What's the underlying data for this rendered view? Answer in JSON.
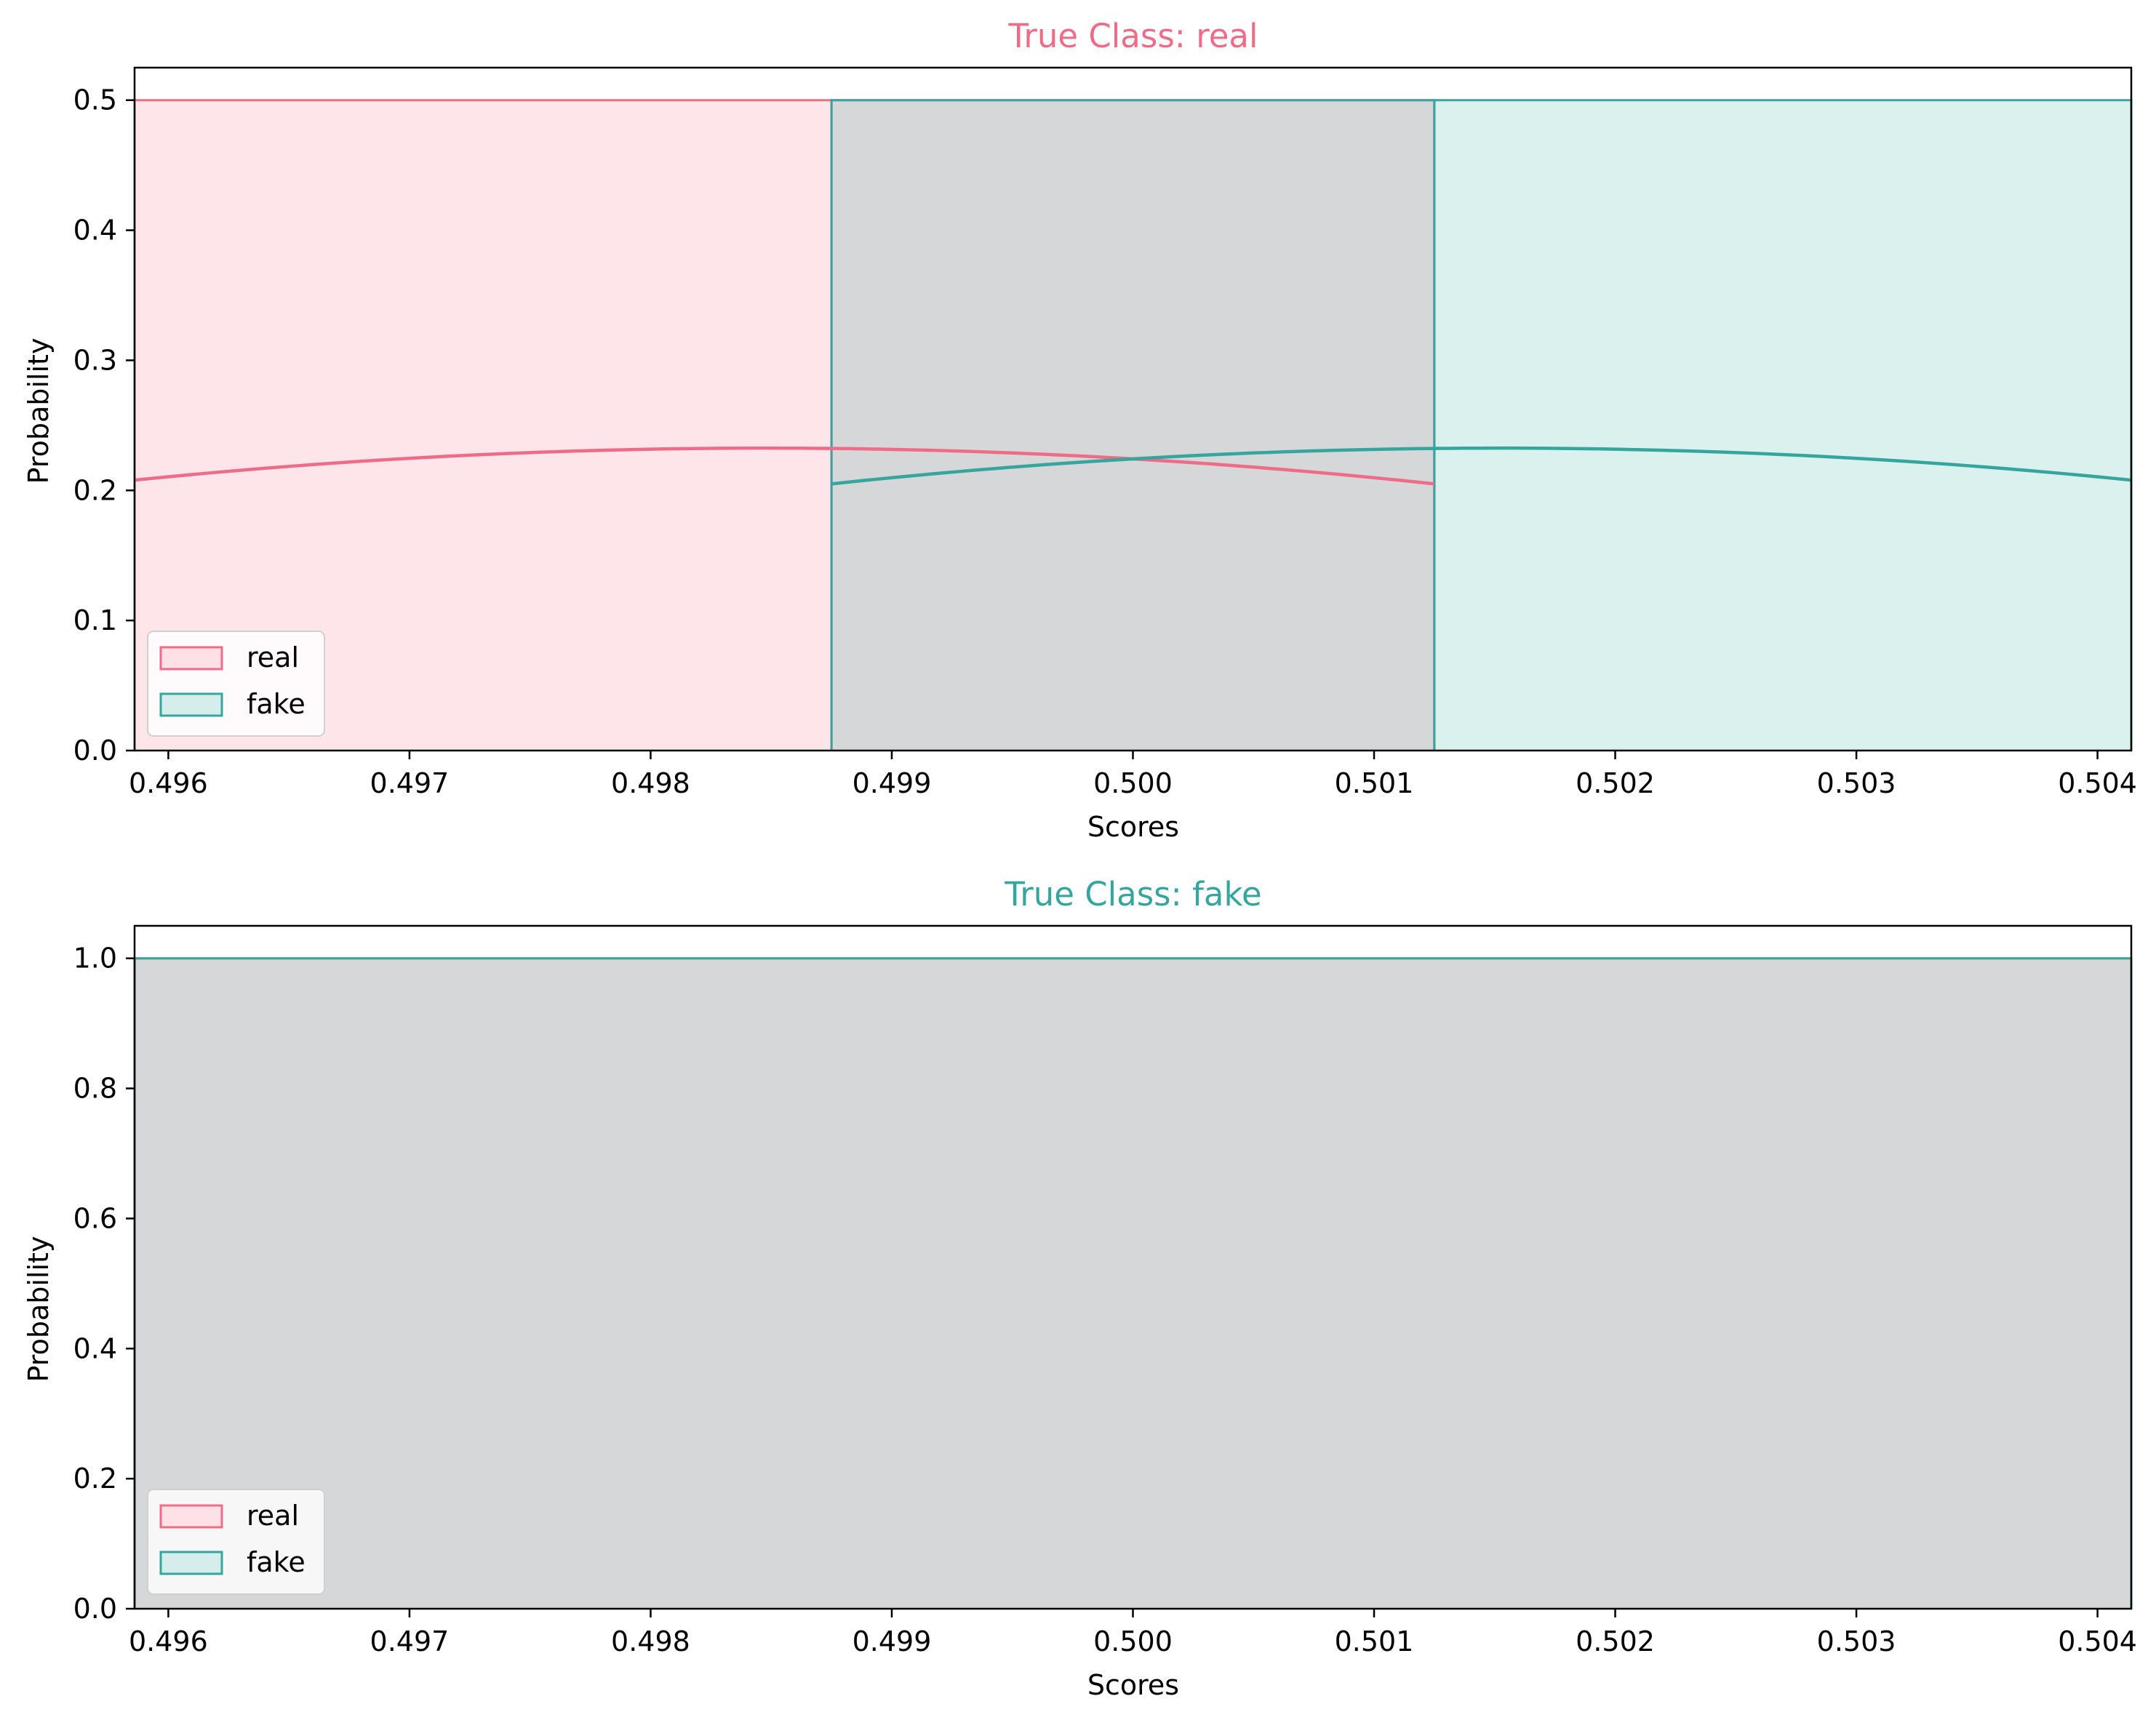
{
  "chart_data": [
    {
      "type": "histogram",
      "title": "True Class: real",
      "title_color": "#ee6c87",
      "xlabel": "Scores",
      "ylabel": "Probability",
      "xlim": [
        0.49586,
        0.50414
      ],
      "ylim": [
        0,
        0.525
      ],
      "xticks": [
        "0.496",
        "0.497",
        "0.498",
        "0.499",
        "0.500",
        "0.501",
        "0.502",
        "0.503",
        "0.504"
      ],
      "yticks": [
        "0.0",
        "0.1",
        "0.2",
        "0.3",
        "0.4",
        "0.5"
      ],
      "legend_position": "lower left",
      "overlap_color": "#d6d7d9",
      "series": [
        {
          "name": "real",
          "color": "#ee6c87",
          "fill": "#fde1e6",
          "bins": [
            {
              "x0": 0.49586,
              "x1": 0.49875,
              "height": 0.5
            },
            {
              "x0": 0.49875,
              "x1": 0.50125,
              "height": 0.5
            }
          ],
          "kde": {
            "peak_x": 0.49848,
            "peak_y": 0.2325,
            "end_y": 0.205,
            "x_from": 0.49586,
            "x_to": 0.50125
          }
        },
        {
          "name": "fake",
          "color": "#35a59d",
          "fill": "#d5eeeb",
          "bins": [
            {
              "x0": 0.49875,
              "x1": 0.50125,
              "height": 0.5
            },
            {
              "x0": 0.50125,
              "x1": 0.50414,
              "height": 0.5
            }
          ],
          "kde": {
            "peak_x": 0.50152,
            "peak_y": 0.2325,
            "end_y": 0.205,
            "x_from": 0.49875,
            "x_to": 0.50414
          }
        }
      ]
    },
    {
      "type": "histogram",
      "title": "True Class: fake",
      "title_color": "#35a59d",
      "xlabel": "Scores",
      "ylabel": "Probability",
      "xlim": [
        0.49586,
        0.50414
      ],
      "ylim": [
        0,
        1.05
      ],
      "xticks": [
        "0.496",
        "0.497",
        "0.498",
        "0.499",
        "0.500",
        "0.501",
        "0.502",
        "0.503",
        "0.504"
      ],
      "yticks": [
        "0.0",
        "0.2",
        "0.4",
        "0.6",
        "0.8",
        "1.0"
      ],
      "legend_position": "lower left",
      "overlap_color": "#d6d7d9",
      "series": [
        {
          "name": "real",
          "color": "#ee6c87",
          "fill": "#fde1e6",
          "bins": [
            {
              "x0": 0.49586,
              "x1": 0.50414,
              "height": 1.0
            }
          ]
        },
        {
          "name": "fake",
          "color": "#35a59d",
          "fill": "#d5eeeb",
          "bins": [
            {
              "x0": 0.49586,
              "x1": 0.50414,
              "height": 1.0
            }
          ]
        }
      ]
    }
  ]
}
